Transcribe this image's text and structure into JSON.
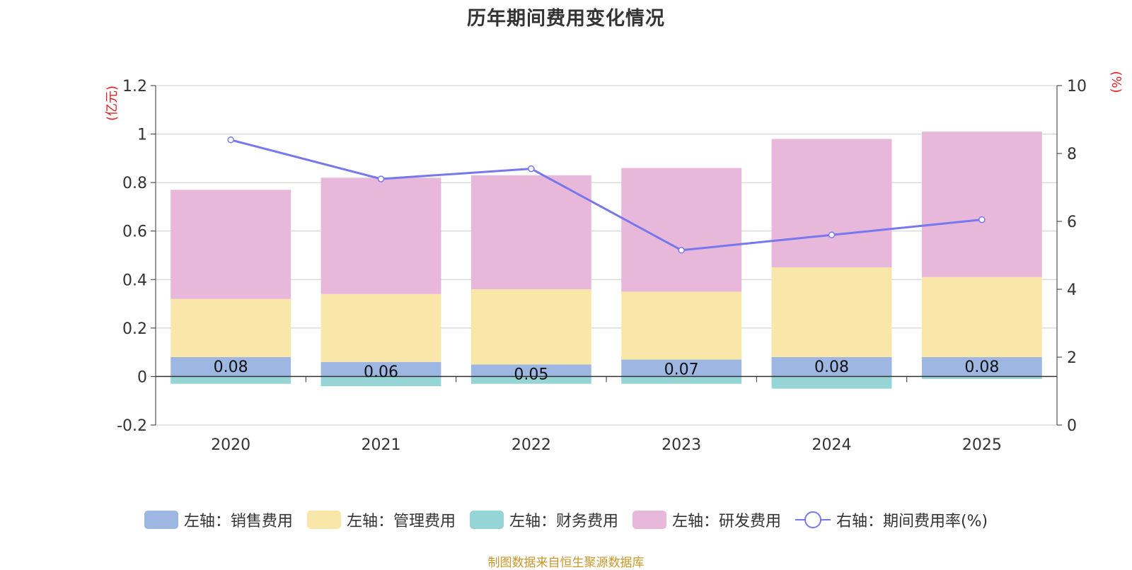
{
  "title": "历年期间费用变化情况",
  "source": "制图数据来自恒生聚源数据库",
  "chart_data": {
    "type": "bar",
    "stacked": true,
    "categories": [
      "2020",
      "2021",
      "2022",
      "2023",
      "2024",
      "2025"
    ],
    "left_axis": {
      "unit_label": "(亿元)",
      "ylim": [
        -0.2,
        1.2
      ],
      "ticks": [
        "-0.2",
        "0",
        "0.2",
        "0.4",
        "0.6",
        "0.8",
        "1",
        "1.2"
      ]
    },
    "right_axis": {
      "unit_label": "(%)",
      "ylim": [
        0,
        10
      ],
      "ticks": [
        "0",
        "2",
        "4",
        "6",
        "8",
        "10"
      ]
    },
    "series": [
      {
        "name": "左轴：销售费用",
        "axis": "left",
        "color": "#9db7e2",
        "values": [
          0.08,
          0.06,
          0.05,
          0.07,
          0.08,
          0.08
        ],
        "labels": [
          "0.08",
          "0.06",
          "0.05",
          "0.07",
          "0.08",
          "0.08"
        ]
      },
      {
        "name": "左轴：管理费用",
        "axis": "left",
        "color": "#f8e7a9",
        "values": [
          0.24,
          0.28,
          0.31,
          0.28,
          0.37,
          0.33
        ]
      },
      {
        "name": "左轴：财务费用",
        "axis": "left",
        "color": "#96d5d6",
        "values": [
          -0.03,
          -0.04,
          -0.03,
          -0.03,
          -0.05,
          -0.01
        ]
      },
      {
        "name": "左轴：研发费用",
        "axis": "left",
        "color": "#e8b8da",
        "values": [
          0.45,
          0.48,
          0.47,
          0.51,
          0.53,
          0.6
        ]
      },
      {
        "name": "右轴：期间费用率(%)",
        "axis": "right",
        "type": "line",
        "color": "#7777ee",
        "values": [
          8.4,
          7.25,
          7.55,
          5.15,
          5.6,
          6.05
        ]
      }
    ]
  }
}
